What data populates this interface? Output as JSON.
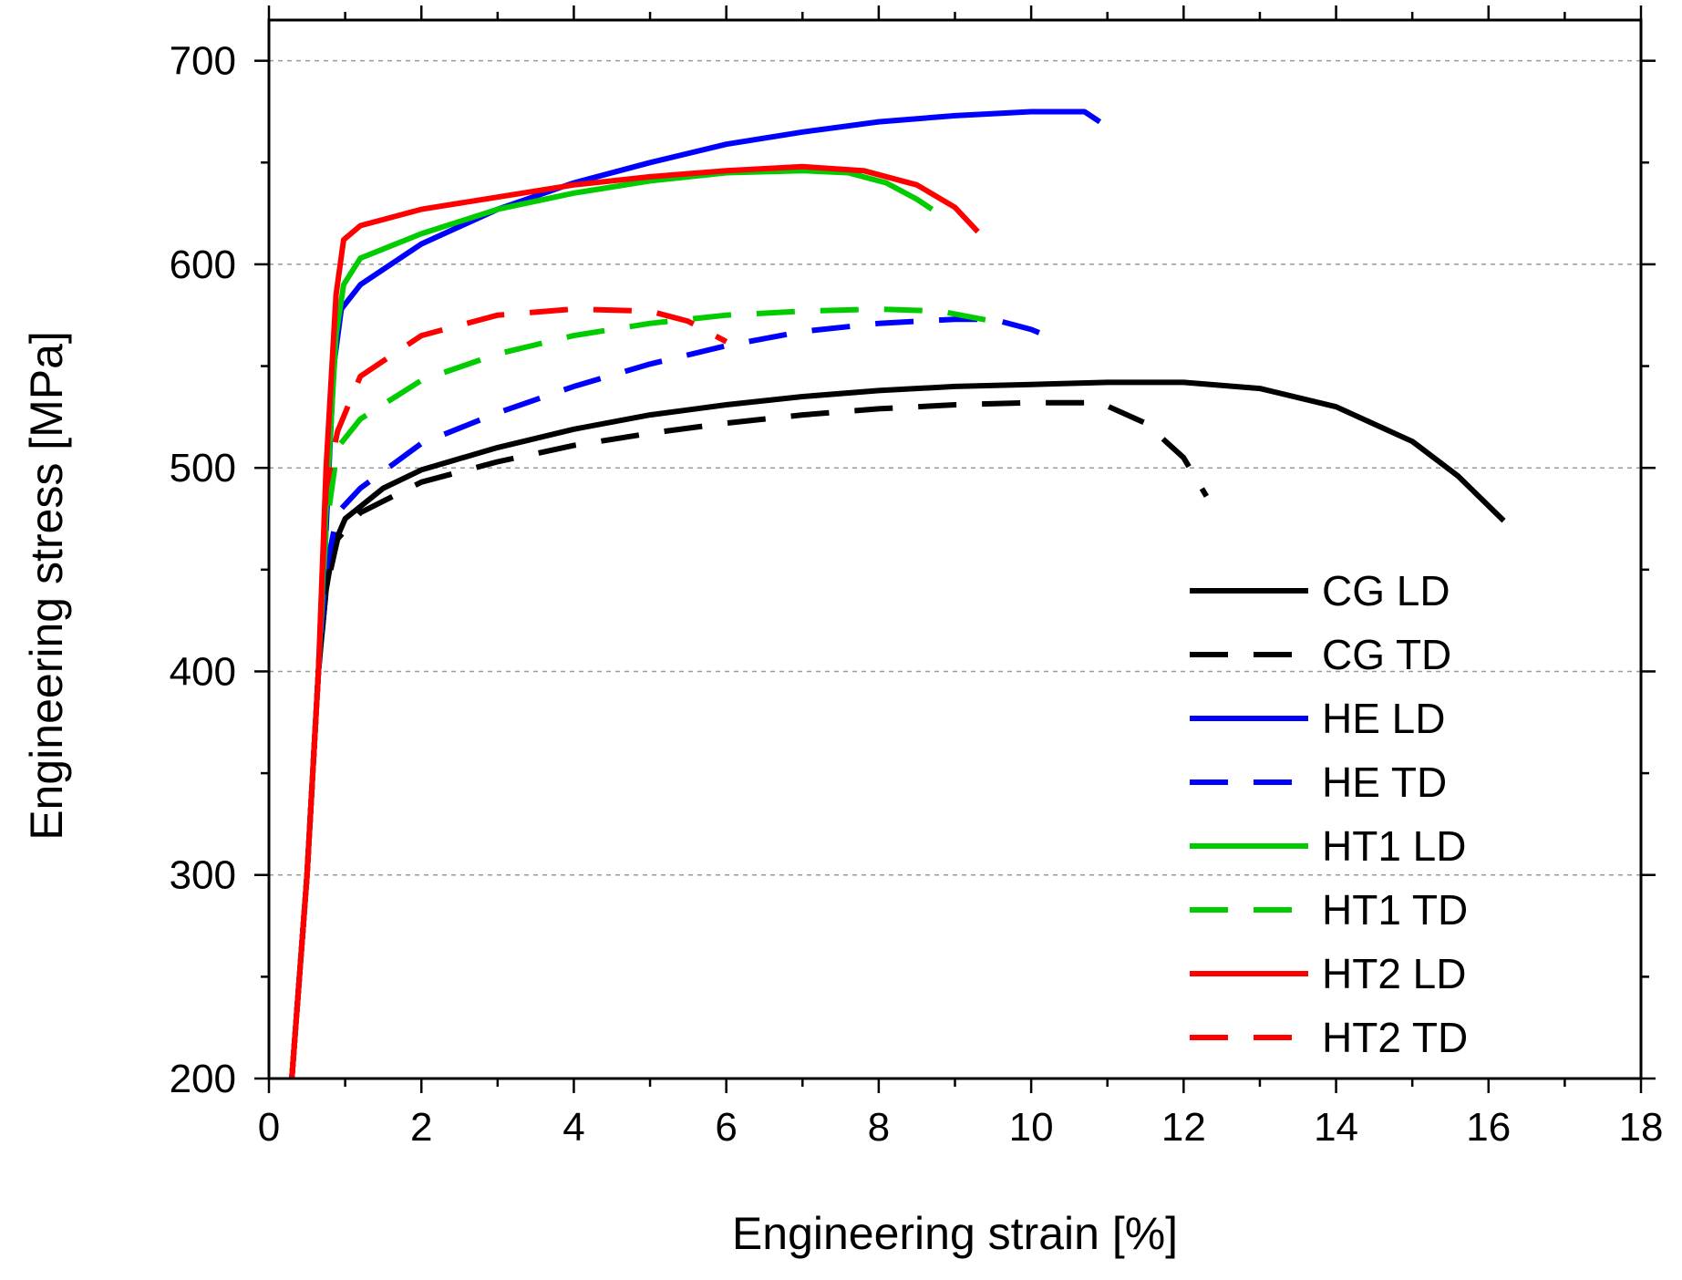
{
  "chart_data": {
    "type": "line",
    "xlabel": "Engineering strain [%]",
    "ylabel": "Engineering stress [MPa]",
    "xlim": [
      0,
      18
    ],
    "ylim": [
      200,
      720
    ],
    "x_ticks": [
      0,
      2,
      4,
      6,
      8,
      10,
      12,
      14,
      16,
      18
    ],
    "y_ticks": [
      200,
      300,
      400,
      500,
      600,
      700
    ],
    "grid": "horizontal dashed at major y ticks",
    "legend_position": "bottom-right",
    "series": [
      {
        "name": "CG LD",
        "color": "#000000",
        "dash": "solid",
        "points": [
          [
            0.3,
            200
          ],
          [
            0.5,
            300
          ],
          [
            0.65,
            400
          ],
          [
            0.75,
            440
          ],
          [
            0.85,
            462
          ],
          [
            1.0,
            475
          ],
          [
            1.5,
            490
          ],
          [
            2,
            499
          ],
          [
            3,
            510
          ],
          [
            4,
            519
          ],
          [
            5,
            526
          ],
          [
            6,
            531
          ],
          [
            7,
            535
          ],
          [
            8,
            538
          ],
          [
            9,
            540
          ],
          [
            10,
            541
          ],
          [
            11,
            542
          ],
          [
            12,
            542
          ],
          [
            13,
            539
          ],
          [
            14,
            530
          ],
          [
            15,
            513
          ],
          [
            15.6,
            496
          ],
          [
            16.2,
            474
          ]
        ]
      },
      {
        "name": "CG TD",
        "color": "#000000",
        "dash": "dashed",
        "points": [
          [
            0.3,
            200
          ],
          [
            0.5,
            300
          ],
          [
            0.65,
            400
          ],
          [
            0.75,
            440
          ],
          [
            0.9,
            465
          ],
          [
            1.2,
            478
          ],
          [
            2,
            493
          ],
          [
            3,
            503
          ],
          [
            4,
            511
          ],
          [
            5,
            517
          ],
          [
            6,
            522
          ],
          [
            7,
            526
          ],
          [
            8,
            529
          ],
          [
            9,
            531
          ],
          [
            10,
            532
          ],
          [
            10.9,
            532
          ],
          [
            11.5,
            522
          ],
          [
            12.0,
            505
          ],
          [
            12.3,
            486
          ]
        ]
      },
      {
        "name": "HE LD",
        "color": "#0000ff",
        "dash": "solid",
        "points": [
          [
            0.3,
            200
          ],
          [
            0.5,
            300
          ],
          [
            0.65,
            400
          ],
          [
            0.75,
            470
          ],
          [
            0.85,
            550
          ],
          [
            0.95,
            578
          ],
          [
            1.2,
            590
          ],
          [
            2,
            610
          ],
          [
            3,
            627
          ],
          [
            4,
            640
          ],
          [
            5,
            650
          ],
          [
            6,
            659
          ],
          [
            7,
            665
          ],
          [
            8,
            670
          ],
          [
            9,
            673
          ],
          [
            10,
            675
          ],
          [
            10.7,
            675
          ],
          [
            10.9,
            670
          ]
        ]
      },
      {
        "name": "HE TD",
        "color": "#0000ff",
        "dash": "dashed",
        "points": [
          [
            0.3,
            200
          ],
          [
            0.5,
            300
          ],
          [
            0.65,
            400
          ],
          [
            0.75,
            450
          ],
          [
            0.9,
            478
          ],
          [
            1.2,
            490
          ],
          [
            2,
            512
          ],
          [
            3,
            527
          ],
          [
            4,
            540
          ],
          [
            5,
            551
          ],
          [
            6,
            560
          ],
          [
            7,
            567
          ],
          [
            8,
            571
          ],
          [
            9,
            573
          ],
          [
            9.5,
            573
          ],
          [
            10,
            568
          ],
          [
            10.4,
            562
          ]
        ]
      },
      {
        "name": "HT1 LD",
        "color": "#00cc00",
        "dash": "solid",
        "points": [
          [
            0.3,
            200
          ],
          [
            0.5,
            300
          ],
          [
            0.65,
            400
          ],
          [
            0.75,
            480
          ],
          [
            0.88,
            565
          ],
          [
            0.98,
            590
          ],
          [
            1.2,
            603
          ],
          [
            2,
            615
          ],
          [
            3,
            627
          ],
          [
            4,
            635
          ],
          [
            5,
            641
          ],
          [
            6,
            645
          ],
          [
            7,
            646
          ],
          [
            7.6,
            645
          ],
          [
            8.1,
            640
          ],
          [
            8.5,
            632
          ],
          [
            8.7,
            627
          ]
        ]
      },
      {
        "name": "HT1 TD",
        "color": "#00cc00",
        "dash": "dashed",
        "points": [
          [
            0.3,
            200
          ],
          [
            0.5,
            300
          ],
          [
            0.65,
            400
          ],
          [
            0.75,
            470
          ],
          [
            0.9,
            510
          ],
          [
            1.2,
            524
          ],
          [
            2,
            543
          ],
          [
            3,
            556
          ],
          [
            4,
            565
          ],
          [
            5,
            571
          ],
          [
            6,
            575
          ],
          [
            7,
            577
          ],
          [
            8,
            578
          ],
          [
            8.8,
            577
          ],
          [
            9.5,
            572
          ]
        ]
      },
      {
        "name": "HT2 LD",
        "color": "#ff0000",
        "dash": "solid",
        "points": [
          [
            0.3,
            200
          ],
          [
            0.5,
            300
          ],
          [
            0.65,
            400
          ],
          [
            0.75,
            500
          ],
          [
            0.88,
            585
          ],
          [
            0.98,
            612
          ],
          [
            1.2,
            619
          ],
          [
            2,
            627
          ],
          [
            3,
            633
          ],
          [
            4,
            639
          ],
          [
            5,
            643
          ],
          [
            6,
            646
          ],
          [
            7,
            648
          ],
          [
            7.8,
            646
          ],
          [
            8.5,
            639
          ],
          [
            9.0,
            628
          ],
          [
            9.3,
            616
          ]
        ]
      },
      {
        "name": "HT2 TD",
        "color": "#ff0000",
        "dash": "dashed",
        "points": [
          [
            0.3,
            200
          ],
          [
            0.5,
            300
          ],
          [
            0.65,
            400
          ],
          [
            0.75,
            490
          ],
          [
            0.9,
            518
          ],
          [
            1.2,
            545
          ],
          [
            2,
            565
          ],
          [
            3,
            575
          ],
          [
            4,
            578
          ],
          [
            5,
            577
          ],
          [
            5.5,
            572
          ],
          [
            6.0,
            562
          ]
        ]
      }
    ]
  }
}
